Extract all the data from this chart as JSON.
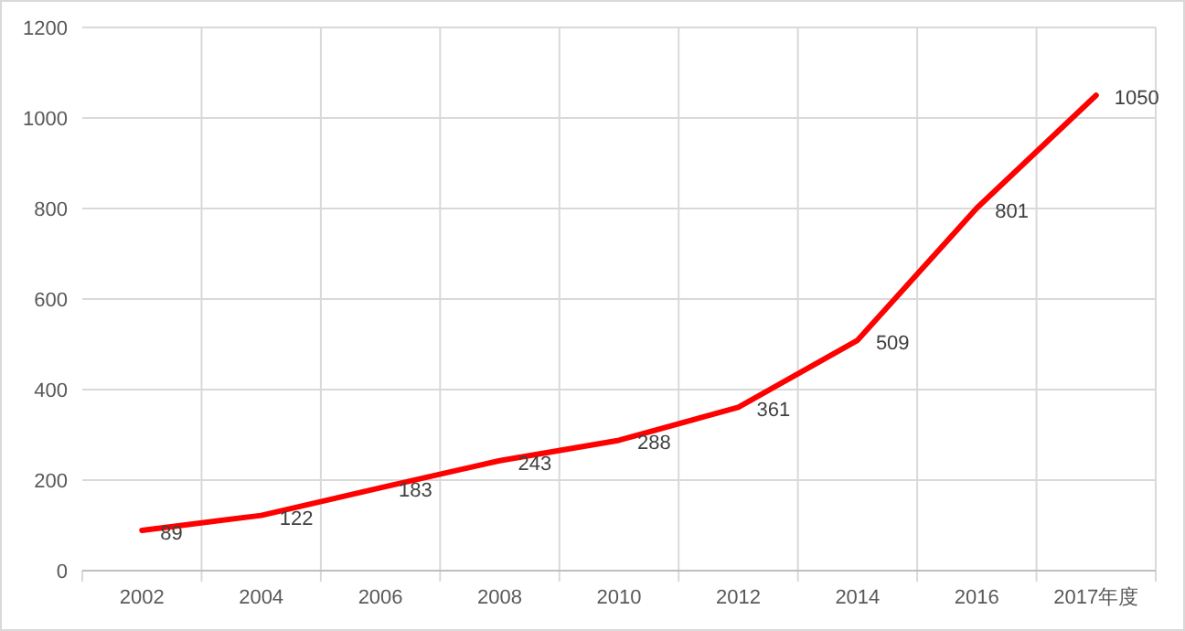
{
  "chart_data": {
    "type": "line",
    "categories": [
      "2002",
      "2004",
      "2006",
      "2008",
      "2010",
      "2012",
      "2014",
      "2016",
      "2017年度"
    ],
    "series": [
      {
        "color": "#ff0000",
        "values": [
          89,
          122,
          183,
          243,
          288,
          361,
          509,
          801,
          1050
        ]
      }
    ],
    "ylim": [
      0,
      1200
    ],
    "yticks": [
      0,
      200,
      400,
      600,
      800,
      1000,
      1200
    ],
    "grid": true,
    "data_labels": true,
    "marker": "none",
    "line_style": "solid"
  }
}
